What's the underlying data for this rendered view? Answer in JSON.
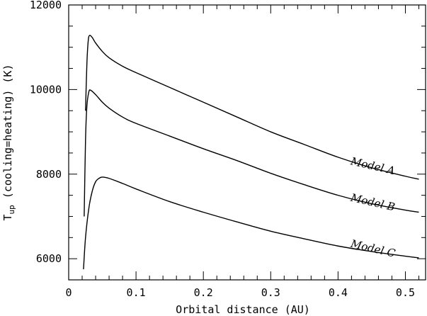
{
  "chart_data": {
    "type": "line",
    "xlabel": "Orbital distance (AU)",
    "ylabel_main": "T",
    "ylabel_sub": "up",
    "ylabel_rest": " (cooling=heating) (K)",
    "xlim": [
      0,
      0.53
    ],
    "ylim": [
      5500,
      12000
    ],
    "x_ticks": [
      {
        "value": 0,
        "label": "0"
      },
      {
        "value": 0.1,
        "label": "0.1"
      },
      {
        "value": 0.2,
        "label": "0.2"
      },
      {
        "value": 0.3,
        "label": "0.3"
      },
      {
        "value": 0.4,
        "label": "0.4"
      },
      {
        "value": 0.5,
        "label": "0.5"
      }
    ],
    "y_ticks": [
      {
        "value": 6000,
        "label": "6000"
      },
      {
        "value": 8000,
        "label": "8000"
      },
      {
        "value": 10000,
        "label": "10000"
      },
      {
        "value": 12000,
        "label": "12000"
      }
    ],
    "series": [
      {
        "name": "Model A",
        "color": "#000000",
        "points": [
          [
            0.025,
            9500
          ],
          [
            0.027,
            10600
          ],
          [
            0.029,
            11150
          ],
          [
            0.031,
            11280
          ],
          [
            0.035,
            11230
          ],
          [
            0.04,
            11100
          ],
          [
            0.05,
            10900
          ],
          [
            0.06,
            10750
          ],
          [
            0.08,
            10550
          ],
          [
            0.1,
            10400
          ],
          [
            0.15,
            10050
          ],
          [
            0.2,
            9700
          ],
          [
            0.25,
            9350
          ],
          [
            0.3,
            9000
          ],
          [
            0.35,
            8700
          ],
          [
            0.4,
            8400
          ],
          [
            0.45,
            8150
          ],
          [
            0.5,
            7950
          ],
          [
            0.52,
            7880
          ]
        ]
      },
      {
        "name": "Model B",
        "color": "#000000",
        "points": [
          [
            0.023,
            7000
          ],
          [
            0.025,
            8800
          ],
          [
            0.027,
            9600
          ],
          [
            0.03,
            9950
          ],
          [
            0.033,
            9980
          ],
          [
            0.04,
            9880
          ],
          [
            0.05,
            9700
          ],
          [
            0.06,
            9560
          ],
          [
            0.08,
            9350
          ],
          [
            0.1,
            9200
          ],
          [
            0.15,
            8900
          ],
          [
            0.2,
            8600
          ],
          [
            0.25,
            8320
          ],
          [
            0.3,
            8020
          ],
          [
            0.35,
            7750
          ],
          [
            0.4,
            7500
          ],
          [
            0.45,
            7300
          ],
          [
            0.5,
            7150
          ],
          [
            0.52,
            7100
          ]
        ]
      },
      {
        "name": "Model C",
        "color": "#000000",
        "points": [
          [
            0.022,
            5750
          ],
          [
            0.025,
            6500
          ],
          [
            0.03,
            7200
          ],
          [
            0.035,
            7600
          ],
          [
            0.04,
            7820
          ],
          [
            0.045,
            7900
          ],
          [
            0.05,
            7930
          ],
          [
            0.06,
            7900
          ],
          [
            0.08,
            7780
          ],
          [
            0.1,
            7650
          ],
          [
            0.15,
            7350
          ],
          [
            0.2,
            7100
          ],
          [
            0.25,
            6870
          ],
          [
            0.3,
            6650
          ],
          [
            0.35,
            6470
          ],
          [
            0.4,
            6300
          ],
          [
            0.45,
            6170
          ],
          [
            0.5,
            6060
          ],
          [
            0.52,
            6020
          ]
        ]
      }
    ],
    "series_label_positions": [
      {
        "name": "Model A",
        "x": 0.418,
        "y": 8230
      },
      {
        "name": "Model B",
        "x": 0.418,
        "y": 7370
      },
      {
        "name": "Model C",
        "x": 0.418,
        "y": 6280
      }
    ],
    "series_label_rotation_deg": 13,
    "grid": false,
    "legend": "none"
  }
}
